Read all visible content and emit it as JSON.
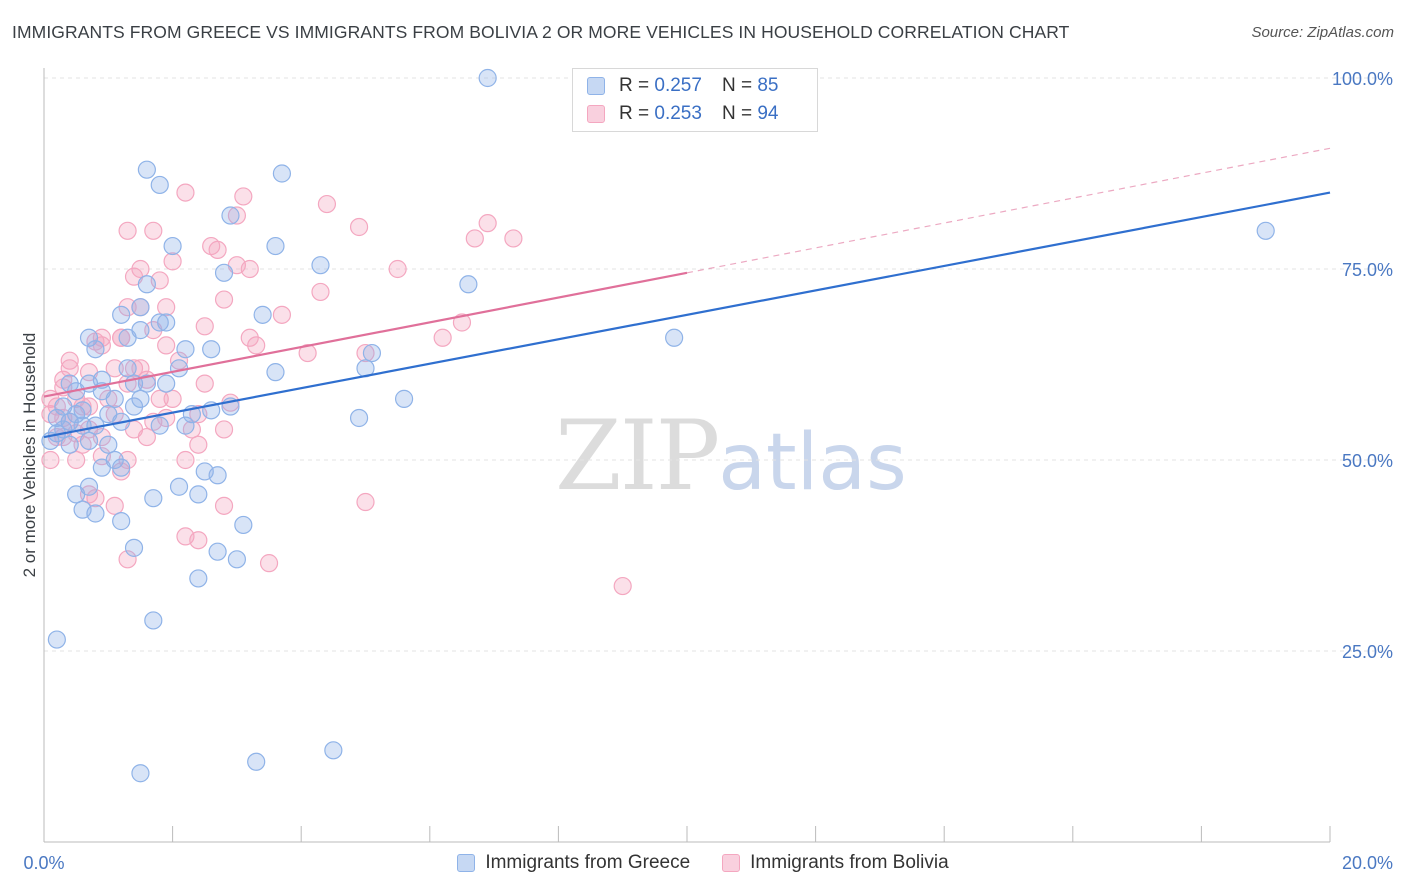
{
  "header": {
    "title": "IMMIGRANTS FROM GREECE VS IMMIGRANTS FROM BOLIVIA 2 OR MORE VEHICLES IN HOUSEHOLD CORRELATION CHART",
    "source": "Source: ZipAtlas.com"
  },
  "watermark": {
    "zip": "ZIP",
    "atlas": "atlas"
  },
  "legend": {
    "r_label": "R =",
    "n_label": "N =",
    "series": [
      {
        "r": "0.257",
        "n": "85"
      },
      {
        "r": "0.253",
        "n": "94"
      }
    ]
  },
  "bottom_legend": {
    "greece": "Immigrants from Greece",
    "bolivia": "Immigrants from Bolivia"
  },
  "chart_data": {
    "type": "scatter",
    "title": "IMMIGRANTS FROM GREECE VS IMMIGRANTS FROM BOLIVIA 2 OR MORE VEHICLES IN HOUSEHOLD CORRELATION CHART",
    "xlabel": "",
    "ylabel": "2 or more Vehicles in Household",
    "xlim": [
      0,
      20
    ],
    "ylim": [
      0,
      100
    ],
    "x_tick_labels": [
      "0.0%",
      "20.0%"
    ],
    "y_ticks": [
      {
        "value": 25,
        "label": "25.0%"
      },
      {
        "value": 50,
        "label": "50.0%"
      },
      {
        "value": 75,
        "label": "75.0%"
      },
      {
        "value": 100,
        "label": "100.0%"
      }
    ],
    "grid": true,
    "series": [
      {
        "name": "Immigrants from Greece",
        "color": "#8fb3e8",
        "line_color": "#2f6fcf",
        "trend": {
          "x0": 0,
          "y0": 53.0,
          "x1": 20,
          "y1": 85.0,
          "dashed_from": null
        },
        "points": [
          [
            6.9,
            100
          ],
          [
            1.6,
            88
          ],
          [
            1.8,
            86
          ],
          [
            3.7,
            87.5
          ],
          [
            2.0,
            78
          ],
          [
            3.6,
            78
          ],
          [
            2.9,
            82
          ],
          [
            2.8,
            74.5
          ],
          [
            4.3,
            75.5
          ],
          [
            6.6,
            73
          ],
          [
            1.2,
            69
          ],
          [
            1.5,
            70
          ],
          [
            1.6,
            73
          ],
          [
            1.5,
            67
          ],
          [
            1.9,
            68
          ],
          [
            3.4,
            69
          ],
          [
            1.8,
            68
          ],
          [
            2.6,
            64.5
          ],
          [
            2.2,
            64.5
          ],
          [
            1.3,
            66
          ],
          [
            0.7,
            66
          ],
          [
            0.8,
            64.5
          ],
          [
            1.3,
            62
          ],
          [
            1.4,
            60
          ],
          [
            0.9,
            59
          ],
          [
            1.1,
            58
          ],
          [
            0.7,
            60
          ],
          [
            0.4,
            60
          ],
          [
            0.5,
            59
          ],
          [
            0.3,
            57
          ],
          [
            0.5,
            56
          ],
          [
            0.2,
            55.5
          ],
          [
            0.4,
            55
          ],
          [
            0.6,
            54.5
          ],
          [
            0.8,
            54.5
          ],
          [
            0.2,
            53.5
          ],
          [
            0.1,
            52.5
          ],
          [
            0.4,
            52
          ],
          [
            0.7,
            52.5
          ],
          [
            1.2,
            55
          ],
          [
            1.0,
            56
          ],
          [
            1.4,
            57
          ],
          [
            1.6,
            60
          ],
          [
            1.9,
            60
          ],
          [
            2.1,
            62
          ],
          [
            2.6,
            56.5
          ],
          [
            2.3,
            56
          ],
          [
            3.6,
            61.5
          ],
          [
            5.0,
            62
          ],
          [
            5.6,
            58
          ],
          [
            5.1,
            64
          ],
          [
            4.9,
            55.5
          ],
          [
            1.1,
            50
          ],
          [
            0.9,
            49
          ],
          [
            1.2,
            49
          ],
          [
            0.7,
            46.5
          ],
          [
            0.5,
            45.5
          ],
          [
            0.8,
            43
          ],
          [
            0.6,
            43.5
          ],
          [
            1.2,
            42
          ],
          [
            1.7,
            45
          ],
          [
            2.1,
            46.5
          ],
          [
            2.4,
            45.5
          ],
          [
            2.7,
            48
          ],
          [
            2.5,
            48.5
          ],
          [
            3.1,
            41.5
          ],
          [
            1.4,
            38.5
          ],
          [
            2.7,
            38
          ],
          [
            3.0,
            37
          ],
          [
            2.4,
            34.5
          ],
          [
            1.7,
            29
          ],
          [
            0.2,
            26.5
          ],
          [
            1.5,
            9
          ],
          [
            3.3,
            10.5
          ],
          [
            4.5,
            12
          ],
          [
            19.0,
            80
          ],
          [
            9.8,
            66
          ],
          [
            1.8,
            54.5
          ],
          [
            2.9,
            57
          ],
          [
            1.0,
            52
          ],
          [
            0.3,
            54
          ],
          [
            0.6,
            56.5
          ],
          [
            1.5,
            58
          ],
          [
            2.2,
            54.5
          ],
          [
            0.9,
            60.5
          ]
        ]
      },
      {
        "name": "Immigrants from Bolivia",
        "color": "#f4a7c0",
        "line_color": "#e0709a",
        "trend": {
          "x0": 0,
          "y0": 58.3,
          "x1": 10,
          "y1": 74.5,
          "dashed_to_x": 20,
          "dashed_to_y": 90.8
        },
        "points": [
          [
            2.2,
            85
          ],
          [
            3.1,
            84.5
          ],
          [
            4.4,
            83.5
          ],
          [
            6.9,
            81
          ],
          [
            3.0,
            82
          ],
          [
            1.3,
            80
          ],
          [
            1.7,
            80
          ],
          [
            4.9,
            80.5
          ],
          [
            7.3,
            79
          ],
          [
            6.7,
            79
          ],
          [
            2.7,
            77.5
          ],
          [
            2.0,
            76
          ],
          [
            3.0,
            75.5
          ],
          [
            1.5,
            75
          ],
          [
            1.4,
            74
          ],
          [
            1.8,
            73.5
          ],
          [
            5.5,
            75
          ],
          [
            3.2,
            75
          ],
          [
            2.8,
            71
          ],
          [
            4.3,
            72
          ],
          [
            1.3,
            70
          ],
          [
            1.5,
            70
          ],
          [
            1.9,
            70
          ],
          [
            3.7,
            69
          ],
          [
            2.5,
            67.5
          ],
          [
            4.1,
            64
          ],
          [
            3.3,
            65
          ],
          [
            1.9,
            65
          ],
          [
            1.2,
            66
          ],
          [
            0.9,
            66
          ],
          [
            0.8,
            65.5
          ],
          [
            0.4,
            63
          ],
          [
            0.7,
            61.5
          ],
          [
            1.1,
            62
          ],
          [
            1.4,
            62
          ],
          [
            1.6,
            60.5
          ],
          [
            0.3,
            60.5
          ],
          [
            0.5,
            58
          ],
          [
            0.2,
            57
          ],
          [
            0.1,
            56
          ],
          [
            0.3,
            55.5
          ],
          [
            0.4,
            55
          ],
          [
            0.7,
            54
          ],
          [
            0.2,
            53
          ],
          [
            0.5,
            53.5
          ],
          [
            1.4,
            54
          ],
          [
            1.7,
            55
          ],
          [
            1.9,
            55.5
          ],
          [
            2.4,
            56
          ],
          [
            2.9,
            57.5
          ],
          [
            2.2,
            50
          ],
          [
            2.4,
            52
          ],
          [
            0.9,
            50.5
          ],
          [
            0.5,
            50
          ],
          [
            1.3,
            50
          ],
          [
            1.2,
            48.5
          ],
          [
            0.8,
            45
          ],
          [
            0.7,
            45.5
          ],
          [
            1.1,
            44
          ],
          [
            2.8,
            44
          ],
          [
            2.2,
            40
          ],
          [
            2.4,
            39.5
          ],
          [
            1.3,
            37
          ],
          [
            3.5,
            36.5
          ],
          [
            5.0,
            44.5
          ],
          [
            9.0,
            33.5
          ],
          [
            6.2,
            66
          ],
          [
            6.5,
            68
          ],
          [
            5.0,
            64
          ],
          [
            0.1,
            50
          ],
          [
            0.1,
            58
          ],
          [
            0.3,
            59.5
          ],
          [
            0.6,
            57
          ],
          [
            1.0,
            58
          ],
          [
            1.5,
            62
          ],
          [
            1.8,
            58
          ],
          [
            2.1,
            63
          ],
          [
            2.5,
            60
          ],
          [
            2.8,
            54
          ],
          [
            1.1,
            56
          ],
          [
            0.9,
            53
          ],
          [
            0.6,
            52
          ],
          [
            1.6,
            53
          ],
          [
            2.3,
            54
          ],
          [
            1.2,
            66
          ],
          [
            0.9,
            65
          ],
          [
            2.6,
            78
          ],
          [
            3.2,
            66
          ],
          [
            1.7,
            67
          ],
          [
            0.4,
            62
          ],
          [
            0.7,
            57
          ],
          [
            1.3,
            60
          ],
          [
            2.0,
            58
          ],
          [
            0.3,
            53
          ]
        ]
      }
    ]
  }
}
